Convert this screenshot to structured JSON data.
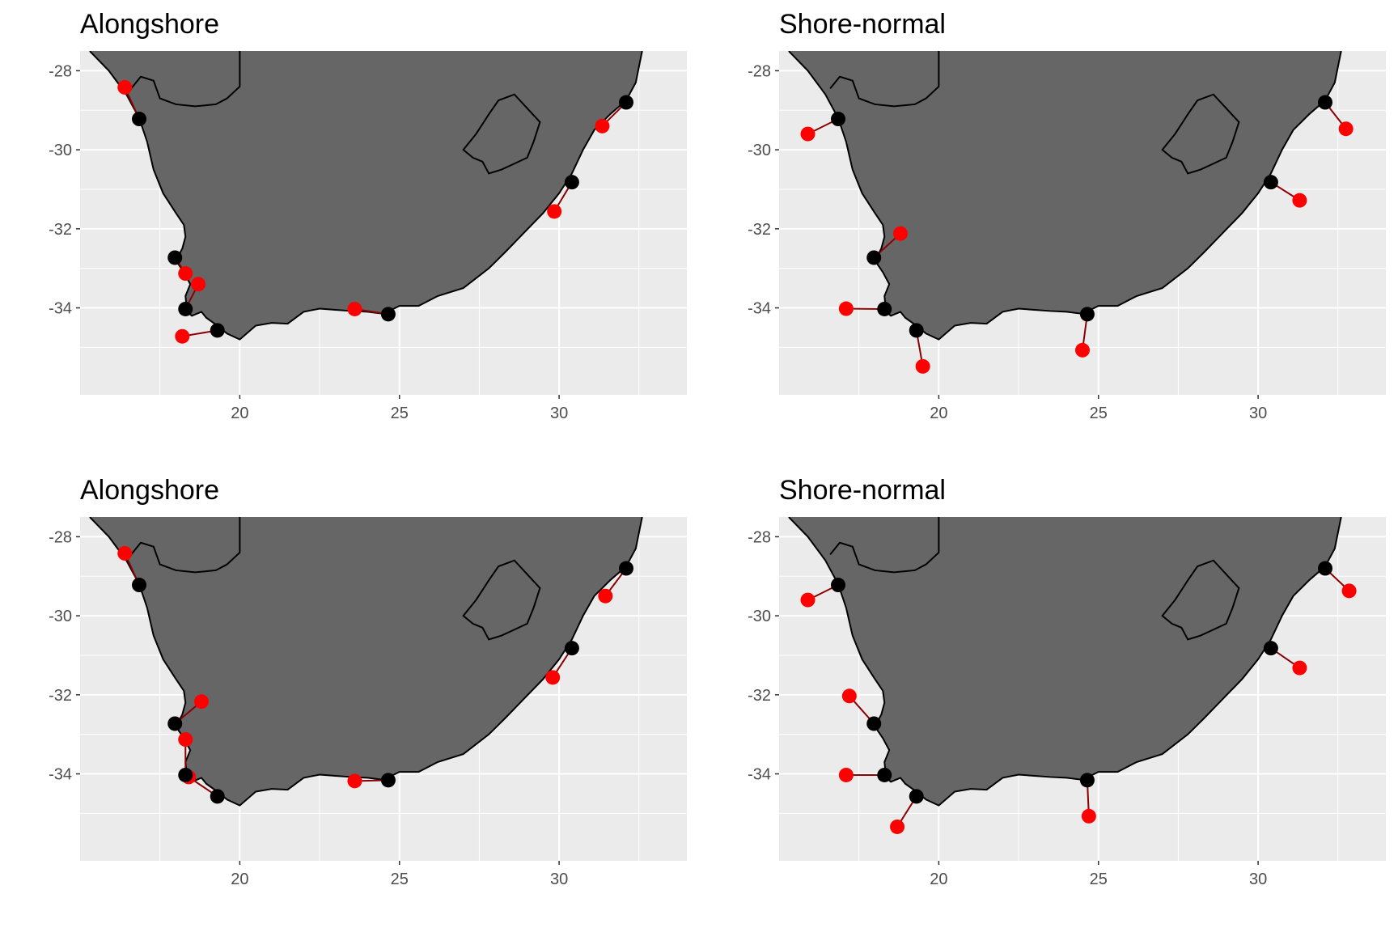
{
  "colors": {
    "panel_background": "#ebebeb",
    "grid": "#ffffff",
    "land_fill": "#666666",
    "outline": "#000000",
    "site_point": "#000000",
    "displaced_point": "#ff0000",
    "connector": "#8b0000"
  },
  "chart_data": [
    {
      "type": "scatter",
      "title": "Alongshore",
      "xlabel": "",
      "ylabel": "",
      "xlim": [
        15,
        34
      ],
      "ylim": [
        -36.2,
        -27.5
      ],
      "x_ticks": [
        "20",
        "25",
        "30"
      ],
      "y_ticks": [
        "-28",
        "-30",
        "-32",
        "-34"
      ],
      "x_tick_values": [
        20,
        25,
        30
      ],
      "y_tick_values": [
        -28,
        -30,
        -32,
        -34
      ],
      "grid": true,
      "sites": [
        [
          16.85,
          -29.22
        ],
        [
          17.97,
          -32.73
        ],
        [
          18.3,
          -34.03
        ],
        [
          19.3,
          -34.57
        ],
        [
          24.65,
          -34.16
        ],
        [
          30.4,
          -30.82
        ],
        [
          32.1,
          -28.8
        ]
      ],
      "displaced": [
        [
          16.4,
          -28.42
        ],
        [
          18.3,
          -33.13
        ],
        [
          18.7,
          -33.4
        ],
        [
          18.2,
          -34.72
        ],
        [
          23.6,
          -34.03
        ],
        [
          29.85,
          -31.56
        ],
        [
          31.35,
          -29.4
        ]
      ]
    },
    {
      "type": "scatter",
      "title": "Shore-normal",
      "xlabel": "",
      "ylabel": "",
      "xlim": [
        15,
        34
      ],
      "ylim": [
        -36.2,
        -27.5
      ],
      "x_ticks": [
        "20",
        "25",
        "30"
      ],
      "y_ticks": [
        "-28",
        "-30",
        "-32",
        "-34"
      ],
      "x_tick_values": [
        20,
        25,
        30
      ],
      "y_tick_values": [
        -28,
        -30,
        -32,
        -34
      ],
      "grid": true,
      "sites": [
        [
          16.85,
          -29.22
        ],
        [
          17.97,
          -32.73
        ],
        [
          18.3,
          -34.03
        ],
        [
          19.3,
          -34.57
        ],
        [
          24.65,
          -34.16
        ],
        [
          30.4,
          -30.82
        ],
        [
          32.1,
          -28.8
        ]
      ],
      "displaced": [
        [
          15.9,
          -29.6
        ],
        [
          18.8,
          -32.12
        ],
        [
          17.1,
          -34.02
        ],
        [
          19.5,
          -35.48
        ],
        [
          24.5,
          -35.07
        ],
        [
          31.3,
          -31.28
        ],
        [
          32.75,
          -29.47
        ]
      ]
    },
    {
      "type": "scatter",
      "title": "Alongshore",
      "xlabel": "",
      "ylabel": "",
      "xlim": [
        15,
        34
      ],
      "ylim": [
        -36.2,
        -27.5
      ],
      "x_ticks": [
        "20",
        "25",
        "30"
      ],
      "y_ticks": [
        "-28",
        "-30",
        "-32",
        "-34"
      ],
      "x_tick_values": [
        20,
        25,
        30
      ],
      "y_tick_values": [
        -28,
        -30,
        -32,
        -34
      ],
      "grid": true,
      "sites": [
        [
          16.85,
          -29.22
        ],
        [
          17.97,
          -32.73
        ],
        [
          18.3,
          -34.03
        ],
        [
          19.3,
          -34.57
        ],
        [
          24.65,
          -34.16
        ],
        [
          30.4,
          -30.82
        ],
        [
          32.1,
          -28.8
        ]
      ],
      "displaced": [
        [
          16.4,
          -28.42
        ],
        [
          18.8,
          -32.17
        ],
        [
          18.3,
          -33.13
        ],
        [
          18.4,
          -34.08
        ],
        [
          23.6,
          -34.18
        ],
        [
          29.8,
          -31.56
        ],
        [
          31.45,
          -29.5
        ]
      ]
    },
    {
      "type": "scatter",
      "title": "Shore-normal",
      "xlabel": "",
      "ylabel": "",
      "xlim": [
        15,
        34
      ],
      "ylim": [
        -36.2,
        -27.5
      ],
      "x_ticks": [
        "20",
        "25",
        "30"
      ],
      "y_ticks": [
        "-28",
        "-30",
        "-32",
        "-34"
      ],
      "x_tick_values": [
        20,
        25,
        30
      ],
      "y_tick_values": [
        -28,
        -30,
        -32,
        -34
      ],
      "grid": true,
      "sites": [
        [
          16.85,
          -29.22
        ],
        [
          17.97,
          -32.73
        ],
        [
          18.3,
          -34.03
        ],
        [
          19.3,
          -34.57
        ],
        [
          24.65,
          -34.16
        ],
        [
          30.4,
          -30.82
        ],
        [
          32.1,
          -28.8
        ]
      ],
      "displaced": [
        [
          15.9,
          -29.6
        ],
        [
          17.2,
          -32.03
        ],
        [
          17.1,
          -34.03
        ],
        [
          18.7,
          -35.34
        ],
        [
          24.7,
          -35.07
        ],
        [
          31.3,
          -31.32
        ],
        [
          32.85,
          -29.37
        ]
      ]
    }
  ]
}
